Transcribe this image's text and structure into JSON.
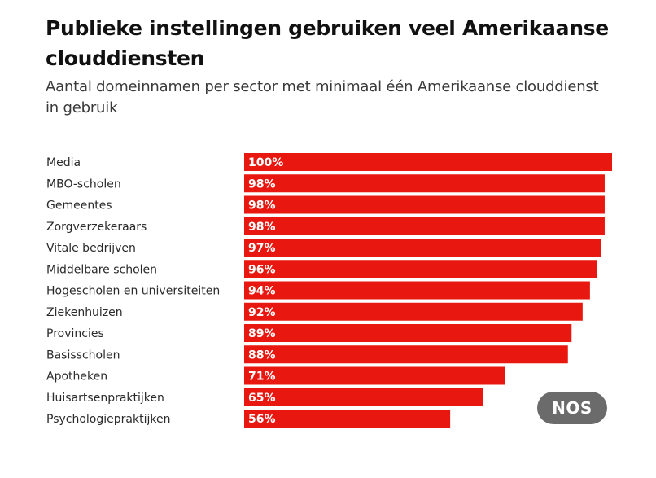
{
  "header": {
    "title": "Publieke instellingen gebruiken veel Amerikaanse clouddiensten",
    "subtitle": "Aantal domeinnamen per sector met minimaal één Amerikaanse clouddienst in gebruik"
  },
  "logo": {
    "text": "NOS",
    "color": "#6b6b6b"
  },
  "colors": {
    "bar": "#e8170f",
    "value_label": "#ffffff"
  },
  "chart_data": {
    "type": "bar",
    "orientation": "horizontal",
    "title": "Publieke instellingen gebruiken veel Amerikaanse clouddiensten",
    "subtitle": "Aantal domeinnamen per sector met minimaal één Amerikaanse clouddienst in gebruik",
    "xlabel": "",
    "ylabel": "",
    "xlim": [
      0,
      100
    ],
    "grid": false,
    "legend": "none",
    "unit": "%",
    "categories": [
      "Media",
      "MBO-scholen",
      "Gemeentes",
      "Zorgverzekeraars",
      "Vitale bedrijven",
      "Middelbare scholen",
      "Hogescholen en universiteiten",
      "Ziekenhuizen",
      "Provincies",
      "Basisscholen",
      "Apotheken",
      "Huisartsenpraktijken",
      "Psychologiepraktijken"
    ],
    "values": [
      100,
      98,
      98,
      98,
      97,
      96,
      94,
      92,
      89,
      88,
      71,
      65,
      56
    ],
    "value_labels": [
      "100%",
      "98%",
      "98%",
      "98%",
      "97%",
      "96%",
      "94%",
      "92%",
      "89%",
      "88%",
      "71%",
      "65%",
      "56%"
    ]
  }
}
